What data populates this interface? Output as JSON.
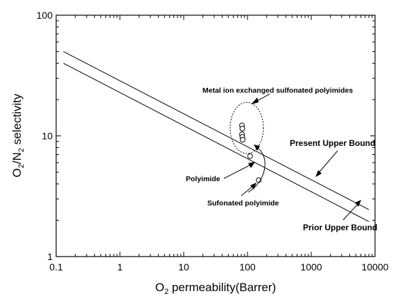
{
  "chart_data": {
    "type": "scatter",
    "xscale": "log",
    "yscale": "log",
    "xlim": [
      0.1,
      10000
    ],
    "ylim": [
      1,
      100
    ],
    "x_ticks": [
      "0.1",
      "1",
      "10",
      "100",
      "1000",
      "10000"
    ],
    "y_ticks": [
      "1",
      "10",
      "100"
    ],
    "xlabel": {
      "pre": "O",
      "sub": "2",
      "post": " permeability(Barrer)"
    },
    "ylabel": {
      "a": "O",
      "sub1": "2",
      "b": "/N",
      "sub2": "2",
      "c": " selectivity"
    },
    "grid": false,
    "lines": [
      {
        "name": "Present Upper Bound",
        "x": [
          0.13,
          8000
        ],
        "y": [
          50,
          2.45
        ]
      },
      {
        "name": "Prior Upper Bound",
        "x": [
          0.13,
          8000
        ],
        "y": [
          40,
          1.95
        ]
      }
    ],
    "series": [
      {
        "name": "Metal ion exchanged sulfonated polyimides",
        "points": [
          [
            82,
            12.2
          ],
          [
            83,
            11.5
          ],
          [
            82,
            10.3
          ],
          [
            83,
            9.8
          ],
          [
            84,
            9.3
          ]
        ]
      },
      {
        "name": "Polyimide",
        "points": [
          [
            110,
            6.8
          ]
        ]
      },
      {
        "name": "Sufonated polyimide",
        "points": [
          [
            150,
            4.3
          ]
        ]
      }
    ],
    "annotations": {
      "metal": "Metal ion exchanged sulfonated polyimides",
      "polyimide": "Polyimide",
      "sufonated": "Sufonated polyimide",
      "present": "Present Upper Bound",
      "prior": "Prior Upper Bound"
    }
  }
}
